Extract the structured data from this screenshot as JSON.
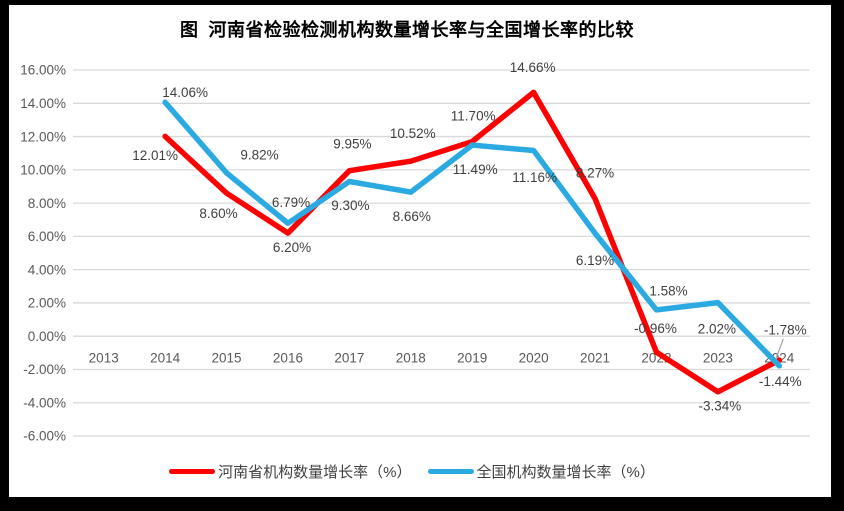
{
  "title": "图  河南省检验检测机构数量增长率与全国增长率的比较",
  "colors": {
    "henan_line": "#FE0000",
    "national_line": "#2BAAE2",
    "gridline": "#D9D9D9",
    "axis_text": "#595959",
    "data_label_text": "#3F3F3F",
    "leader_line": "#A0A0A0",
    "frame": "#000000",
    "background": "#FFFFFF"
  },
  "chart_data": {
    "type": "line",
    "title": "图  河南省检验检测机构数量增长率与全国增长率的比较",
    "categories": [
      "2013",
      "2014",
      "2015",
      "2016",
      "2017",
      "2018",
      "2019",
      "2020",
      "2021",
      "2022",
      "2023",
      "2024"
    ],
    "series": [
      {
        "name": "河南省机构数量增长率（%）",
        "color_key": "henan_line",
        "values": [
          null,
          12.01,
          8.6,
          6.2,
          9.95,
          10.52,
          11.7,
          14.66,
          8.27,
          -0.96,
          -3.34,
          -1.44
        ]
      },
      {
        "name": "全国机构数量增长率（%）",
        "color_key": "national_line",
        "values": [
          null,
          14.06,
          9.82,
          6.79,
          9.3,
          8.66,
          11.49,
          11.16,
          6.19,
          1.58,
          2.02,
          -1.78
        ]
      }
    ],
    "ylim": [
      -6,
      16
    ],
    "ytick_step": 2,
    "ytick_labels": [
      "16.00%",
      "14.00%",
      "12.00%",
      "10.00%",
      "8.00%",
      "6.00%",
      "4.00%",
      "2.00%",
      "0.00%",
      "-2.00%",
      "-4.00%",
      "-6.00%"
    ],
    "xlabel": "",
    "ylabel": "",
    "grid": true,
    "data_labels_visible": true,
    "legend_position": "bottom",
    "label_offsets": [
      [
        null,
        [
          -10,
          19
        ],
        [
          -8,
          20
        ],
        [
          4,
          14
        ],
        [
          3,
          -27
        ],
        [
          2,
          -28
        ],
        [
          1,
          -26
        ],
        [
          -1,
          -25
        ],
        [
          0,
          -26
        ],
        [
          -1,
          -24
        ],
        [
          2,
          14
        ],
        [
          1,
          21
        ]
      ],
      [
        null,
        [
          20,
          -10
        ],
        [
          33,
          -18
        ],
        [
          3,
          -21
        ],
        [
          1,
          24
        ],
        [
          1,
          24
        ],
        [
          3,
          24
        ],
        [
          1,
          27
        ],
        [
          0,
          27
        ],
        [
          12,
          -19
        ],
        [
          -1,
          26
        ],
        [
          6,
          -36
        ]
      ]
    ],
    "leader_lines": [
      {
        "series_index": 1,
        "point_index": 11
      }
    ]
  },
  "legend": {
    "items": [
      {
        "label": "河南省机构数量增长率（%）",
        "color_key": "henan_line"
      },
      {
        "label": "全国机构数量增长率（%）",
        "color_key": "national_line"
      }
    ]
  }
}
